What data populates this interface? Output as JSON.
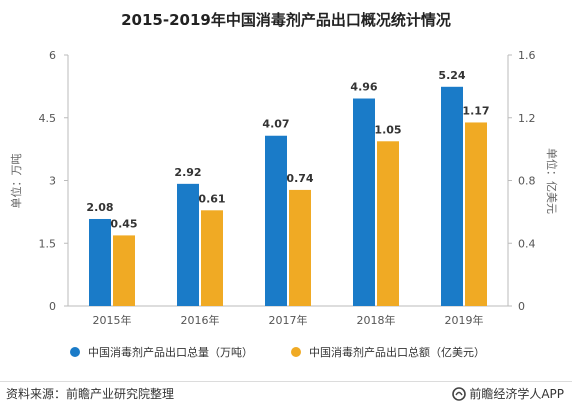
{
  "chart_data": {
    "type": "bar",
    "title": "2015-2019年中国消毒剂产品出口概况统计情况",
    "categories": [
      "2015年",
      "2016年",
      "2017年",
      "2018年",
      "2019年"
    ],
    "series": [
      {
        "name": "中国消毒剂产品出口总量（万吨）",
        "values": [
          2.08,
          2.92,
          4.07,
          4.96,
          5.24
        ],
        "color": "#1a7bc8",
        "axis": "left"
      },
      {
        "name": "中国消毒剂产品出口总额（亿美元）",
        "values": [
          0.45,
          0.61,
          0.74,
          1.05,
          1.17
        ],
        "color": "#f0aa24",
        "axis": "right"
      }
    ],
    "ylabel_left": "单位：万吨",
    "ylabel_right": "单位：亿美元",
    "ylim_left": [
      0,
      6
    ],
    "yticks_left": [
      "0",
      "1.5",
      "3",
      "4.5",
      "6"
    ],
    "ylim_right": [
      0,
      1.6
    ],
    "yticks_right": [
      "0",
      "0.4",
      "0.8",
      "1.2",
      "1.6"
    ],
    "grid": false,
    "legend_position": "bottom"
  },
  "footer": {
    "source": "资料来源：前瞻产业研究院整理",
    "brand": "前瞻经济学人APP"
  }
}
